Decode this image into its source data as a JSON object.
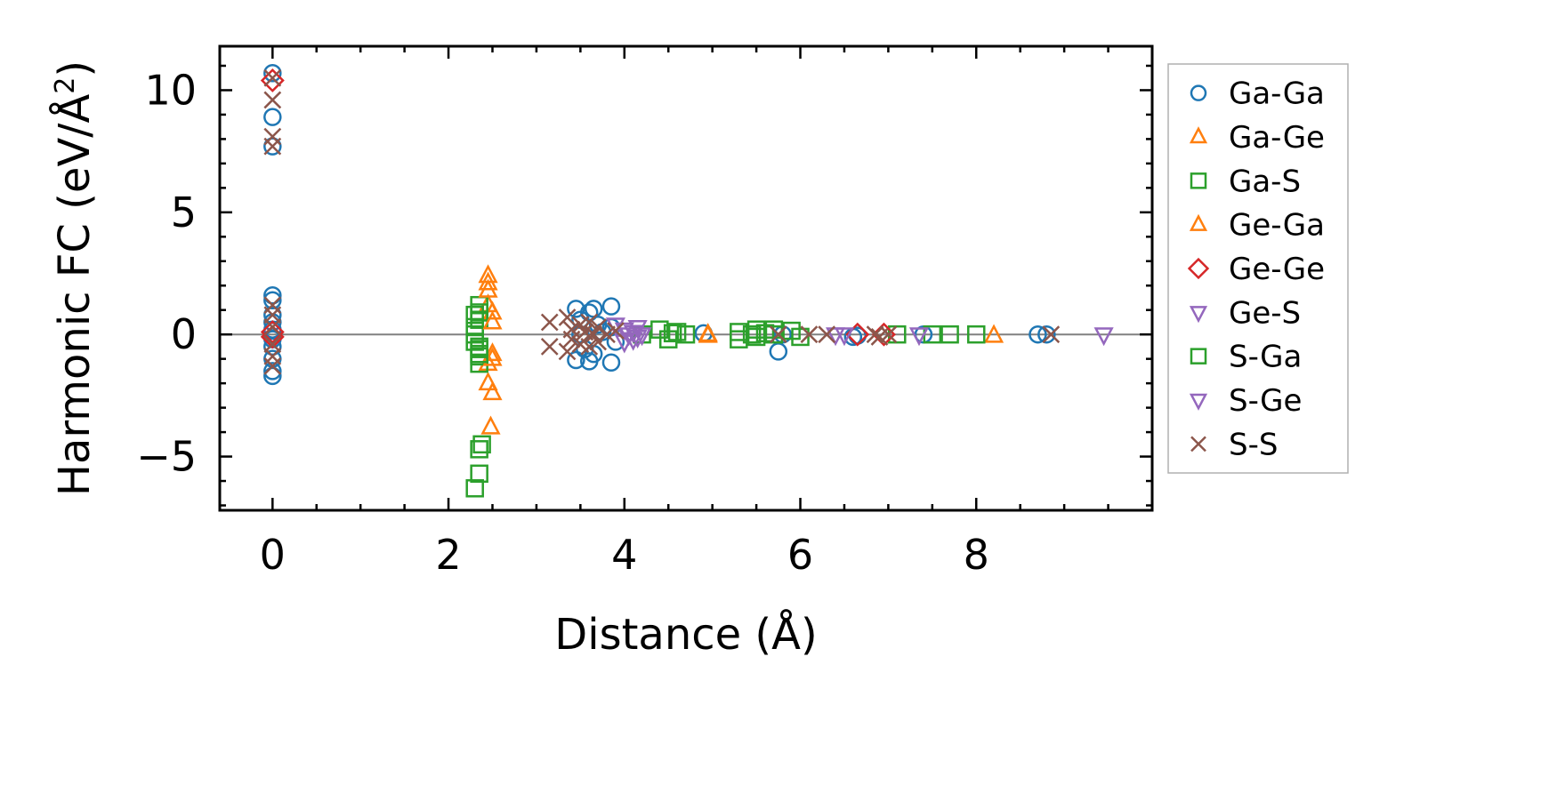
{
  "chart_data": {
    "type": "scatter",
    "title": "",
    "xlabel": "Distance (Å)",
    "ylabel_main": "Harmonic FC (eV/Å",
    "ylabel_sup": "2",
    "ylabel_close": ")",
    "xlim": [
      -0.6,
      10.0
    ],
    "ylim": [
      -7.2,
      11.8
    ],
    "xticks": [
      0,
      2,
      4,
      6,
      8
    ],
    "xtick_labels": [
      "0",
      "2",
      "4",
      "6",
      "8"
    ],
    "yticks": [
      -5,
      0,
      5,
      10
    ],
    "ytick_labels": [
      "−5",
      "0",
      "5",
      "10"
    ],
    "grid": false,
    "zero_line": true,
    "legend_position": "outside-right",
    "series": [
      {
        "name": "Ga-Ga",
        "marker": "circle",
        "color": "#1f77b4",
        "points": [
          [
            0,
            10.7
          ],
          [
            0,
            8.9
          ],
          [
            0,
            7.7
          ],
          [
            0,
            1.6
          ],
          [
            0,
            1.4
          ],
          [
            0,
            0.8
          ],
          [
            0,
            0.5
          ],
          [
            0,
            0.2
          ],
          [
            0,
            -0.2
          ],
          [
            0,
            -0.5
          ],
          [
            0,
            -1.0
          ],
          [
            0,
            -1.5
          ],
          [
            0,
            -1.7
          ],
          [
            3.45,
            1.05
          ],
          [
            3.5,
            0.6
          ],
          [
            3.6,
            0.9
          ],
          [
            3.65,
            1.05
          ],
          [
            3.7,
            0.4
          ],
          [
            3.85,
            1.15
          ],
          [
            3.85,
            0.3
          ],
          [
            3.45,
            -1.05
          ],
          [
            3.55,
            -0.6
          ],
          [
            3.6,
            -1.1
          ],
          [
            3.65,
            -0.8
          ],
          [
            3.85,
            -1.15
          ],
          [
            3.9,
            -0.3
          ],
          [
            3.75,
            0.1
          ],
          [
            3.5,
            0.0
          ],
          [
            4.9,
            0.05
          ],
          [
            5.75,
            -0.7
          ],
          [
            5.8,
            0.0
          ],
          [
            6.6,
            -0.1
          ],
          [
            6.65,
            -0.05
          ],
          [
            7.4,
            0.0
          ],
          [
            8.7,
            0.0
          ],
          [
            8.8,
            0.0
          ]
        ]
      },
      {
        "name": "Ga-Ge",
        "marker": "triangle-up",
        "color": "#ff7f0e",
        "points": [
          [
            2.45,
            2.4
          ],
          [
            2.45,
            2.1
          ],
          [
            2.45,
            1.2
          ],
          [
            2.5,
            0.9
          ],
          [
            2.5,
            -0.8
          ],
          [
            2.45,
            -1.2
          ],
          [
            2.45,
            -2.0
          ],
          [
            2.5,
            -2.4
          ],
          [
            2.48,
            -3.8
          ],
          [
            4.95,
            -0.05
          ],
          [
            8.2,
            -0.05
          ]
        ]
      },
      {
        "name": "Ga-S",
        "marker": "square",
        "color": "#2ca02c",
        "points": [
          [
            2.35,
            1.2
          ],
          [
            2.35,
            0.9
          ],
          [
            2.35,
            0.6
          ],
          [
            2.3,
            0.3
          ],
          [
            2.3,
            0.0
          ],
          [
            2.3,
            -0.3
          ],
          [
            2.35,
            -0.6
          ],
          [
            2.35,
            -0.9
          ],
          [
            2.35,
            -1.2
          ],
          [
            2.38,
            -4.5
          ],
          [
            2.35,
            -4.7
          ],
          [
            2.35,
            -5.7
          ],
          [
            2.3,
            -6.3
          ],
          [
            4.2,
            0.0
          ],
          [
            4.4,
            0.2
          ],
          [
            4.6,
            0.1
          ],
          [
            4.5,
            -0.2
          ],
          [
            4.7,
            0.0
          ],
          [
            5.3,
            0.1
          ],
          [
            5.3,
            -0.2
          ],
          [
            5.5,
            0.2
          ],
          [
            5.5,
            -0.1
          ],
          [
            5.7,
            0.2
          ],
          [
            5.7,
            0.0
          ],
          [
            5.9,
            0.15
          ],
          [
            6.0,
            -0.1
          ],
          [
            7.1,
            0.0
          ],
          [
            7.5,
            0.0
          ],
          [
            7.7,
            0.0
          ],
          [
            8.0,
            0.0
          ]
        ]
      },
      {
        "name": "Ge-Ga",
        "marker": "triangle-up",
        "color": "#ff7f0e",
        "points": [
          [
            2.45,
            1.8
          ],
          [
            2.5,
            -1.0
          ],
          [
            2.5,
            0.5
          ],
          [
            4.95,
            0.0
          ]
        ]
      },
      {
        "name": "Ge-Ge",
        "marker": "diamond",
        "color": "#d62728",
        "points": [
          [
            0,
            10.4
          ],
          [
            0,
            0.1
          ],
          [
            0,
            -0.1
          ],
          [
            6.65,
            0.0
          ],
          [
            6.95,
            0.0
          ]
        ]
      },
      {
        "name": "Ge-S",
        "marker": "triangle-down",
        "color": "#9467bd",
        "points": [
          [
            3.9,
            0.4
          ],
          [
            4.0,
            0.2
          ],
          [
            4.05,
            0.0
          ],
          [
            4.1,
            -0.2
          ],
          [
            4.15,
            0.3
          ],
          [
            4.2,
            0.0
          ],
          [
            4.0,
            -0.3
          ],
          [
            6.4,
            0.0
          ],
          [
            7.35,
            0.0
          ],
          [
            9.45,
            0.0
          ]
        ]
      },
      {
        "name": "S-Ga",
        "marker": "square",
        "color": "#2ca02c",
        "points": [
          [
            2.3,
            0.8
          ],
          [
            2.35,
            -0.5
          ],
          [
            2.35,
            -0.8
          ],
          [
            4.55,
            0.05
          ],
          [
            5.45,
            0.0
          ],
          [
            5.6,
            0.05
          ]
        ]
      },
      {
        "name": "S-Ge",
        "marker": "triangle-down",
        "color": "#9467bd",
        "points": [
          [
            4.1,
            0.1
          ],
          [
            4.15,
            -0.1
          ],
          [
            6.5,
            0.0
          ]
        ]
      },
      {
        "name": "S-S",
        "marker": "x",
        "color": "#8c564b",
        "points": [
          [
            0,
            10.5
          ],
          [
            0,
            9.6
          ],
          [
            0,
            8.1
          ],
          [
            0,
            7.7
          ],
          [
            0,
            1.2
          ],
          [
            0,
            0.8
          ],
          [
            0,
            0.3
          ],
          [
            0,
            -0.4
          ],
          [
            0,
            -0.9
          ],
          [
            0,
            -1.3
          ],
          [
            3.15,
            0.5
          ],
          [
            3.15,
            -0.5
          ],
          [
            3.35,
            0.7
          ],
          [
            3.35,
            -0.7
          ],
          [
            3.4,
            0.2
          ],
          [
            3.4,
            -0.2
          ],
          [
            3.5,
            0.4
          ],
          [
            3.5,
            -0.4
          ],
          [
            3.55,
            0.1
          ],
          [
            3.6,
            0.5
          ],
          [
            3.6,
            -0.5
          ],
          [
            3.65,
            0.0
          ],
          [
            3.7,
            0.3
          ],
          [
            3.7,
            -0.3
          ],
          [
            3.8,
            0.0
          ],
          [
            3.9,
            0.15
          ],
          [
            5.75,
            0.0
          ],
          [
            6.1,
            0.0
          ],
          [
            6.3,
            0.0
          ],
          [
            6.85,
            0.0
          ],
          [
            6.9,
            -0.1
          ],
          [
            7.0,
            0.0
          ],
          [
            8.85,
            0.0
          ]
        ]
      }
    ]
  }
}
